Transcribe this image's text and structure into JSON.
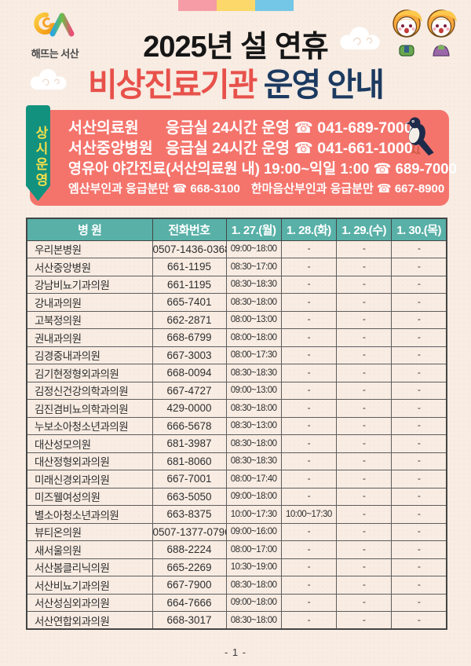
{
  "theme": {
    "background": "#F8ECE3",
    "bar_colors": [
      "#F59CA6",
      "#FBD869",
      "#74C7E6"
    ],
    "notice_box_color": "#F4746C",
    "ribbon_color": "#12917F",
    "table_header_color": "#58B0A7",
    "title_red": "#E8514B",
    "title_navy": "#1C3A60"
  },
  "logo": {
    "text": "해뜨는 서산"
  },
  "header": {
    "title_line1": "2025년 설 연휴",
    "title_line2_red": "비상진료기관",
    "title_line2_navy": " 운영 안내"
  },
  "notice": {
    "ribbon": "상시운영",
    "phone_icon": "☎",
    "lines": [
      {
        "name": "서산의료원",
        "desc": "응급실 24시간 운영",
        "tel": "041-689-7000"
      },
      {
        "name": "서산중앙병원",
        "desc": "응급실 24시간 운영",
        "tel": "041-661-1000"
      }
    ],
    "line3": {
      "name": "영유아 야간진료(서산의료원 내)",
      "desc": "19:00~익일 1:00",
      "tel": "689-7000"
    },
    "line4": [
      {
        "name": "엠산부인과 응급분만",
        "tel": "668-3100"
      },
      {
        "name": "한마음산부인과 응급분만",
        "tel": "667-8900"
      }
    ]
  },
  "table": {
    "headers": [
      "병 원",
      "전화번호",
      "1. 27.(월)",
      "1. 28.(화)",
      "1. 29.(수)",
      "1. 30.(목)"
    ],
    "rows": [
      {
        "name": "우리본병원",
        "phone": "0507-1436-0368",
        "days": [
          "09:00~18:00",
          "-",
          "-",
          "-"
        ]
      },
      {
        "name": "서산중앙병원",
        "phone": "661-1195",
        "days": [
          "08:30~17:00",
          "-",
          "-",
          "-"
        ]
      },
      {
        "name": "강남비뇨기과의원",
        "phone": "661-1195",
        "days": [
          "08:30~18:30",
          "-",
          "-",
          "-"
        ]
      },
      {
        "name": "강내과의원",
        "phone": "665-7401",
        "days": [
          "08:30~18:00",
          "-",
          "-",
          "-"
        ]
      },
      {
        "name": "고북정의원",
        "phone": "662-2871",
        "days": [
          "08:00~13:00",
          "-",
          "-",
          "-"
        ]
      },
      {
        "name": "권내과의원",
        "phone": "668-6799",
        "days": [
          "08:00~18:00",
          "-",
          "-",
          "-"
        ]
      },
      {
        "name": "김경중내과의원",
        "phone": "667-3003",
        "days": [
          "08:00~17:30",
          "-",
          "-",
          "-"
        ]
      },
      {
        "name": "김기현정형외과의원",
        "phone": "668-0094",
        "days": [
          "08:30~18:30",
          "-",
          "-",
          "-"
        ]
      },
      {
        "name": "김정신건강의학과의원",
        "phone": "667-4727",
        "days": [
          "09:00~13:00",
          "-",
          "-",
          "-"
        ]
      },
      {
        "name": "김진겸비뇨의학과의원",
        "phone": "429-0000",
        "days": [
          "08:30~18:00",
          "-",
          "-",
          "-"
        ]
      },
      {
        "name": "누보소아청소년과의원",
        "phone": "666-5678",
        "days": [
          "08:30~13:00",
          "-",
          "-",
          "-"
        ]
      },
      {
        "name": "대산성모의원",
        "phone": "681-3987",
        "days": [
          "08:30~18:00",
          "-",
          "-",
          "-"
        ]
      },
      {
        "name": "대산정형외과의원",
        "phone": "681-8060",
        "days": [
          "08:30~18:30",
          "-",
          "-",
          "-"
        ]
      },
      {
        "name": "미래신경외과의원",
        "phone": "667-7001",
        "days": [
          "08:00~17:40",
          "-",
          "-",
          "-"
        ]
      },
      {
        "name": "미즈웰여성의원",
        "phone": "663-5050",
        "days": [
          "09:00~18:00",
          "-",
          "-",
          "-"
        ]
      },
      {
        "name": "별소아청소년과의원",
        "phone": "663-8375",
        "days": [
          "10:00~17:30",
          "10:00~17:30",
          "-",
          "-"
        ]
      },
      {
        "name": "뷰티온의원",
        "phone": "0507-1377-0796",
        "days": [
          "09:00~16:00",
          "-",
          "-",
          "-"
        ]
      },
      {
        "name": "새서울의원",
        "phone": "688-2224",
        "days": [
          "08:00~17:00",
          "-",
          "-",
          "-"
        ]
      },
      {
        "name": "서산봄클리닉의원",
        "phone": "665-2269",
        "days": [
          "10:30~19:00",
          "-",
          "-",
          "-"
        ]
      },
      {
        "name": "서산비뇨기과의원",
        "phone": "667-7900",
        "days": [
          "08:30~18:00",
          "-",
          "-",
          "-"
        ]
      },
      {
        "name": "서산성심외과의원",
        "phone": "664-7666",
        "days": [
          "09:00~18:00",
          "-",
          "-",
          "-"
        ]
      },
      {
        "name": "서산연합외과의원",
        "phone": "668-3017",
        "days": [
          "08:30~18:00",
          "-",
          "-",
          "-"
        ]
      }
    ]
  },
  "footer": {
    "page_number": "- 1 -"
  }
}
